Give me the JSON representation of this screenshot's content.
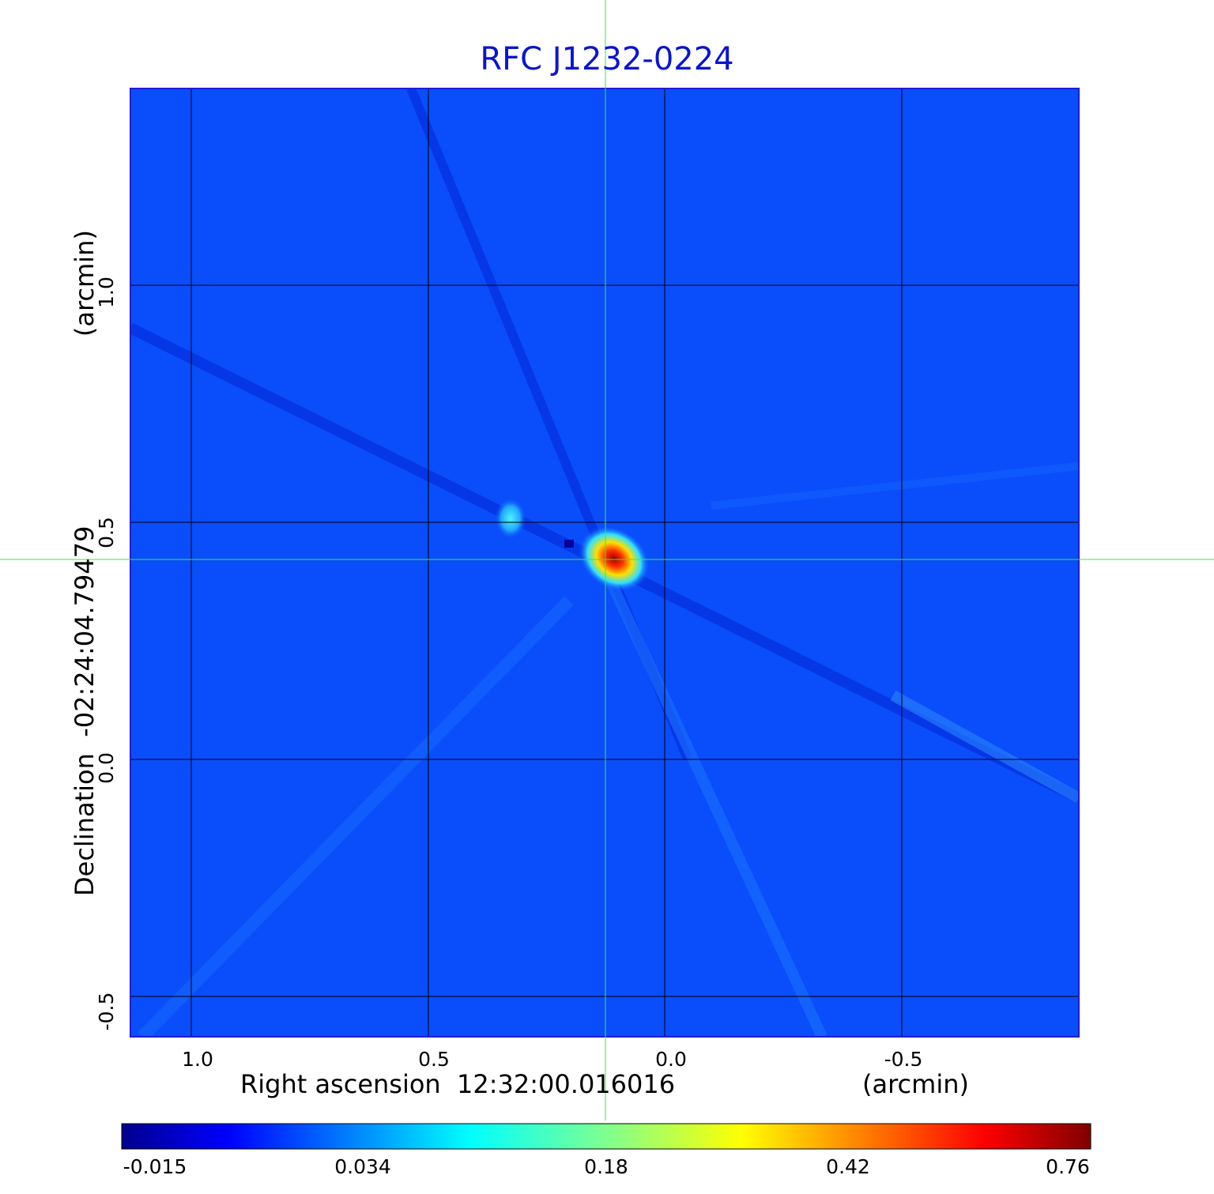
{
  "chart_data": {
    "type": "heatmap",
    "title": "RFC J1232-0224",
    "xlabel": "Right ascension  12:32:00.016016",
    "xunit": "(arcmin)",
    "ylabel": "Declination  -02:24:04.79479",
    "yunit": "(arcmin)",
    "x_ticks": [
      1.0,
      0.5,
      0.0,
      -0.5
    ],
    "x_tick_labels": [
      "1.0",
      "0.5",
      "0.0",
      "-0.5"
    ],
    "y_ticks": [
      1.0,
      0.5,
      0.0,
      -0.5
    ],
    "y_tick_labels": [
      "1.0",
      "0.5",
      "0.0",
      "-0.5"
    ],
    "xlim": [
      1.13,
      -0.87
    ],
    "ylim": [
      -0.59,
      1.41
    ],
    "grid": true,
    "crosshair": {
      "x": 0.125,
      "y": 0.42
    },
    "peak": {
      "x": 0.13,
      "y": 0.42,
      "value": 0.76
    },
    "colorbar": {
      "tick_values": [
        -0.015,
        0.034,
        0.18,
        0.42,
        0.76
      ],
      "tick_labels": [
        "-0.015",
        "0.034",
        "0.18",
        "0.42",
        "0.76"
      ],
      "colormap": "jet"
    },
    "colors": {
      "background": "#0a4dfb",
      "title": "#0a14d2",
      "frame": "#1d1dd6",
      "crosshair": "#33ee33",
      "grid": "#000000"
    }
  }
}
